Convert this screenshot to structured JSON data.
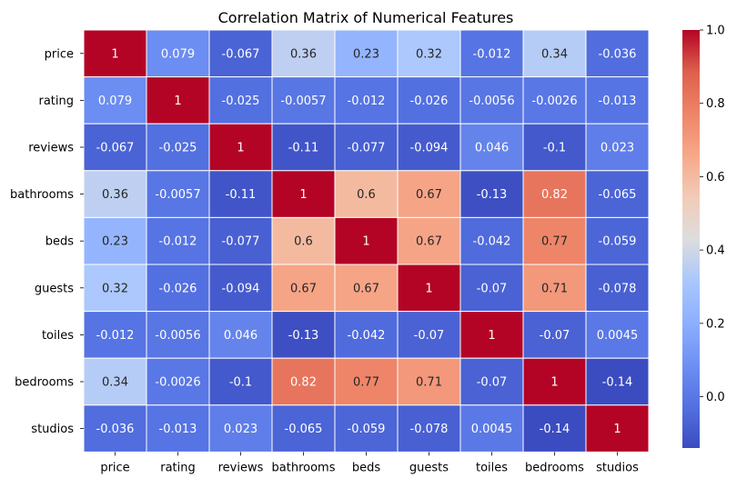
{
  "chart_data": {
    "type": "heatmap",
    "title": "Correlation Matrix of Numerical Features",
    "xlabel": "",
    "ylabel": "",
    "rows": [
      "price",
      "rating",
      "reviews",
      "bathrooms",
      "beds",
      "guests",
      "toiles",
      "bedrooms",
      "studios"
    ],
    "columns": [
      "price",
      "rating",
      "reviews",
      "bathrooms",
      "beds",
      "guests",
      "toiles",
      "bedrooms",
      "studios"
    ],
    "values": [
      [
        1,
        0.079,
        -0.067,
        0.36,
        0.23,
        0.32,
        -0.012,
        0.34,
        -0.036
      ],
      [
        0.079,
        1,
        -0.025,
        -0.0057,
        -0.012,
        -0.026,
        -0.0056,
        -0.0026,
        -0.013
      ],
      [
        -0.067,
        -0.025,
        1,
        -0.11,
        -0.077,
        -0.094,
        0.046,
        -0.1,
        0.023
      ],
      [
        0.36,
        -0.0057,
        -0.11,
        1,
        0.6,
        0.67,
        -0.13,
        0.82,
        -0.065
      ],
      [
        0.23,
        -0.012,
        -0.077,
        0.6,
        1,
        0.67,
        -0.042,
        0.77,
        -0.059
      ],
      [
        0.32,
        -0.026,
        -0.094,
        0.67,
        0.67,
        1,
        -0.07,
        0.71,
        -0.078
      ],
      [
        -0.012,
        -0.0056,
        0.046,
        -0.13,
        -0.042,
        -0.07,
        1,
        -0.07,
        0.0045
      ],
      [
        0.34,
        -0.0026,
        -0.1,
        0.82,
        0.77,
        0.71,
        -0.07,
        1,
        -0.14
      ],
      [
        -0.036,
        -0.013,
        0.023,
        -0.065,
        -0.059,
        -0.078,
        0.0045,
        -0.14,
        1
      ]
    ],
    "colormap": "coolwarm",
    "color_range": [
      -0.14,
      1.0
    ],
    "colorbar_ticks": [
      "0.0",
      "0.2",
      "0.4",
      "0.6",
      "0.8",
      "1.0"
    ],
    "annotations": true,
    "grid": false,
    "legend_placement": "right"
  }
}
